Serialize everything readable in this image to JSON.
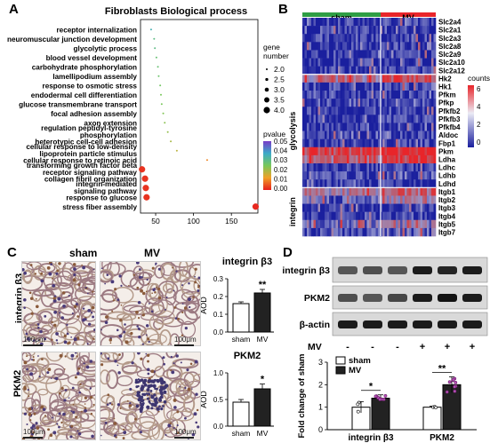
{
  "panelA": {
    "letter": "A",
    "title": "Fibroblasts Biological process",
    "terms": [
      "receptor internalization",
      "neuromuscular junction development",
      "glycolytic process",
      "blood vessel development",
      "carbohydrate phosphorylation",
      "lamellipodium assembly",
      "response to osmotic stress",
      "endodermal cell differentiation",
      "glucose transmembrane transport",
      "focal adhesion assembly",
      "axon extension",
      "regulation peptidyl-tyrosine phosphorylation",
      "heterotypic cell-cell adhesion",
      "cellular response to low-density lipoprotein particle stimulus",
      "cellular response to retinoic acid",
      "transforming growth factor beta receptor signaling pathway",
      "collagen fibril organization",
      "integrin-mediated signaling pathway",
      "response to glucose",
      "stress fiber assembly"
    ],
    "term_lines": [
      [
        "receptor internalization"
      ],
      [
        "neuromuscular junction development"
      ],
      [
        "glycolytic process"
      ],
      [
        "blood vessel development"
      ],
      [
        "carbohydrate phosphorylation"
      ],
      [
        "lamellipodium assembly"
      ],
      [
        "response to osmotic stress"
      ],
      [
        "endodermal cell differentiation"
      ],
      [
        "glucose transmembrane transport"
      ],
      [
        "focal adhesion assembly"
      ],
      [
        "axon extension"
      ],
      [
        "regulation peptidyl-tyrosine",
        "phosphorylation"
      ],
      [
        "heterotypic cell-cell adhesion"
      ],
      [
        "cellular response to low-density",
        "lipoprotein particle stimulus"
      ],
      [
        "cellular response to retinoic acid"
      ],
      [
        "transforming growth factor beta",
        "receptor signaling pathway"
      ],
      [
        "collagen fibril organization"
      ],
      [
        "integrin-mediated",
        "signaling pathway"
      ],
      [
        "response to glucose"
      ],
      [
        "stress fiber assembly"
      ]
    ],
    "xticks": [
      "50",
      "100",
      "150"
    ],
    "legend_size_title": [
      "gene",
      "number"
    ],
    "legend_size_values": [
      "2.0",
      "2.5",
      "3.0",
      "3.5",
      "4.0"
    ],
    "legend_p_title": "pvalue",
    "legend_p_values": [
      "0.05",
      "0.04",
      "0.03",
      "0.02",
      "0.01",
      "0.00"
    ]
  },
  "chart_data": [
    {
      "type": "scatter",
      "panel": "A",
      "title": "Fibroblasts Biological process",
      "xlabel": "",
      "ylabel": "",
      "xlim": [
        30,
        185
      ],
      "categories": [
        "receptor internalization",
        "neuromuscular junction development",
        "glycolytic process",
        "blood vessel development",
        "carbohydrate phosphorylation",
        "lamellipodium assembly",
        "response to osmotic stress",
        "endodermal cell differentiation",
        "glucose transmembrane transport",
        "focal adhesion assembly",
        "axon extension",
        "regulation peptidyl-tyrosine phosphorylation",
        "heterotypic cell-cell adhesion",
        "cellular response to low-density lipoprotein particle stimulus",
        "cellular response to retinoic acid",
        "transforming growth factor beta receptor signaling pathway",
        "collagen fibril organization",
        "integrin-mediated signaling pathway",
        "response to glucose",
        "stress fiber assembly"
      ],
      "x": [
        44,
        48,
        49,
        51,
        53,
        54,
        56,
        57,
        58,
        60,
        62,
        66,
        70,
        78,
        118,
        32,
        36,
        37,
        38,
        182
      ],
      "gene_number": [
        2,
        2,
        2,
        2,
        2,
        2,
        2,
        2,
        2,
        2,
        2,
        2,
        2,
        2,
        2,
        4,
        4,
        4,
        4,
        4
      ],
      "pvalue": [
        0.035,
        0.03,
        0.03,
        0.028,
        0.028,
        0.027,
        0.026,
        0.025,
        0.025,
        0.024,
        0.023,
        0.022,
        0.02,
        0.018,
        0.01,
        0.002,
        0.002,
        0.002,
        0.002,
        0.001
      ]
    },
    {
      "type": "bar",
      "panel": "C-top",
      "title": "integrin β3",
      "ylabel": "AOD",
      "categories": [
        "sham",
        "MV"
      ],
      "values": [
        0.16,
        0.22
      ],
      "errors": [
        0.01,
        0.02
      ],
      "ylim": [
        0,
        0.3
      ],
      "yticks": [
        "0.0",
        "0.1",
        "0.2",
        "0.3"
      ],
      "significance": "**"
    },
    {
      "type": "bar",
      "panel": "C-bottom",
      "title": "PKM2",
      "ylabel": "AOD",
      "categories": [
        "sham",
        "MV"
      ],
      "values": [
        0.45,
        0.7
      ],
      "errors": [
        0.05,
        0.09
      ],
      "ylim": [
        0,
        1.0
      ],
      "yticks": [
        "0.0",
        "0.5",
        "1.0"
      ],
      "significance": "*"
    },
    {
      "type": "bar",
      "panel": "D",
      "ylabel": "Fold change of sham",
      "categories": [
        "integrin β3",
        "PKM2"
      ],
      "series": [
        {
          "name": "sham",
          "values": [
            1.0,
            1.0
          ],
          "errors": [
            0.25,
            0.05
          ]
        },
        {
          "name": "MV",
          "values": [
            1.4,
            2.0
          ],
          "errors": [
            0.15,
            0.35
          ]
        }
      ],
      "ylim": [
        0,
        3
      ],
      "yticks": [
        "0",
        "1",
        "2",
        "3"
      ],
      "significance": [
        "*",
        "**"
      ]
    }
  ],
  "panelB": {
    "letter": "B",
    "groups": [
      "sham",
      "MV"
    ],
    "genes": [
      "Slc2a4",
      "Slc2a1",
      "Slc2a3",
      "Slc2a8",
      "Slc2a9",
      "Slc2a10",
      "Slc2a12",
      "Hk2",
      "Hk1",
      "Pfkm",
      "Pfkp",
      "Pfkfb2",
      "Pfkfb3",
      "Pfkfb4",
      "Aldoc",
      "Fbp1",
      "Pkm",
      "Ldha",
      "Ldhc",
      "Ldhb",
      "Ldhd",
      "Itgb1",
      "Itgb2",
      "Itgb3",
      "Itgb4",
      "Itgb5",
      "Itgb7"
    ],
    "row_groups": [
      "glycolysis",
      "integrin"
    ],
    "legend_title": "counts",
    "legend_values": [
      "6",
      "4",
      "2",
      "0"
    ]
  },
  "panelC": {
    "letter": "C",
    "col_headers": [
      "sham",
      "MV"
    ],
    "row_headers": [
      "integrin β3",
      "PKM2"
    ],
    "scale": "100μm",
    "chart_titles": [
      "integrin β3",
      "PKM2"
    ],
    "ylabel": "AOD",
    "xcats": [
      "sham",
      "MV"
    ],
    "yticks_top": [
      "0.3",
      "0.2",
      "0.1",
      "0.0"
    ],
    "yticks_bottom": [
      "1.0",
      "0.5",
      "0.0"
    ],
    "sig_top": "**",
    "sig_bottom": "*"
  },
  "panelD": {
    "letter": "D",
    "blot_labels": [
      "integrin β3",
      "PKM2",
      "β-actin"
    ],
    "mv_label": "MV",
    "mv_signs": [
      "-",
      "-",
      "-",
      "+",
      "+",
      "+"
    ],
    "legend": [
      "sham",
      "MV"
    ],
    "ylabel": "Fold change of sham",
    "yticks": [
      "3",
      "2",
      "1",
      "0"
    ],
    "xcats": [
      "integrin β3",
      "PKM2"
    ],
    "sig": [
      "*",
      "**"
    ]
  },
  "colors": {
    "sham_bar": "#ffffff",
    "mv_bar": "#222222",
    "heat_high": "#e8252a",
    "heat_low": "#1a1f9e",
    "sham_strip": "#2f9e44",
    "mv_strip": "#e8252a"
  }
}
